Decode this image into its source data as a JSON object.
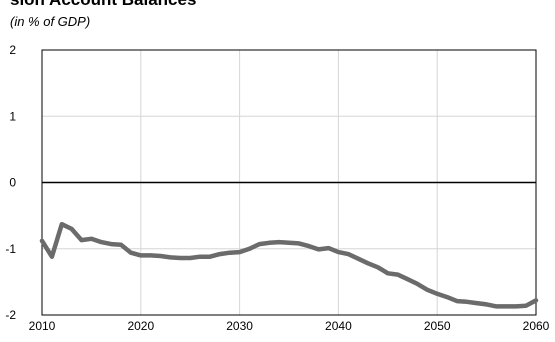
{
  "chart_data": {
    "type": "line",
    "title": "sion Account Balances",
    "subtitle": "(in % of GDP)",
    "xlabel": "",
    "ylabel": "",
    "xlim": [
      2010,
      2060
    ],
    "ylim": [
      -2,
      2
    ],
    "x_ticks": [
      "2010",
      "2020",
      "2030",
      "2040",
      "2050",
      "2060"
    ],
    "y_ticks": [
      "2",
      "1",
      "0",
      "-1",
      "-2"
    ],
    "grid": true,
    "legend": "none",
    "line_color": "#6b6b6b",
    "series": [
      {
        "x": [
          2010,
          2011,
          2012,
          2013,
          2014,
          2015,
          2016,
          2017,
          2018,
          2019,
          2020,
          2021,
          2022,
          2023,
          2024,
          2025,
          2026,
          2027,
          2028,
          2029,
          2030,
          2031,
          2032,
          2033,
          2034,
          2035,
          2036,
          2037,
          2038,
          2039,
          2040,
          2041,
          2042,
          2043,
          2044,
          2045,
          2046,
          2047,
          2048,
          2049,
          2050,
          2051,
          2052,
          2053,
          2054,
          2055,
          2056,
          2057,
          2058,
          2059,
          2060
        ],
        "values": [
          -0.88,
          -1.12,
          -0.63,
          -0.7,
          -0.87,
          -0.85,
          -0.9,
          -0.93,
          -0.94,
          -1.06,
          -1.1,
          -1.1,
          -1.11,
          -1.13,
          -1.14,
          -1.14,
          -1.12,
          -1.12,
          -1.08,
          -1.06,
          -1.05,
          -1.0,
          -0.93,
          -0.91,
          -0.9,
          -0.91,
          -0.92,
          -0.96,
          -1.01,
          -0.99,
          -1.05,
          -1.08,
          -1.15,
          -1.22,
          -1.28,
          -1.37,
          -1.39,
          -1.46,
          -1.53,
          -1.62,
          -1.68,
          -1.73,
          -1.79,
          -1.8,
          -1.82,
          -1.84,
          -1.87,
          -1.87,
          -1.87,
          -1.86,
          -1.78
        ]
      }
    ]
  }
}
